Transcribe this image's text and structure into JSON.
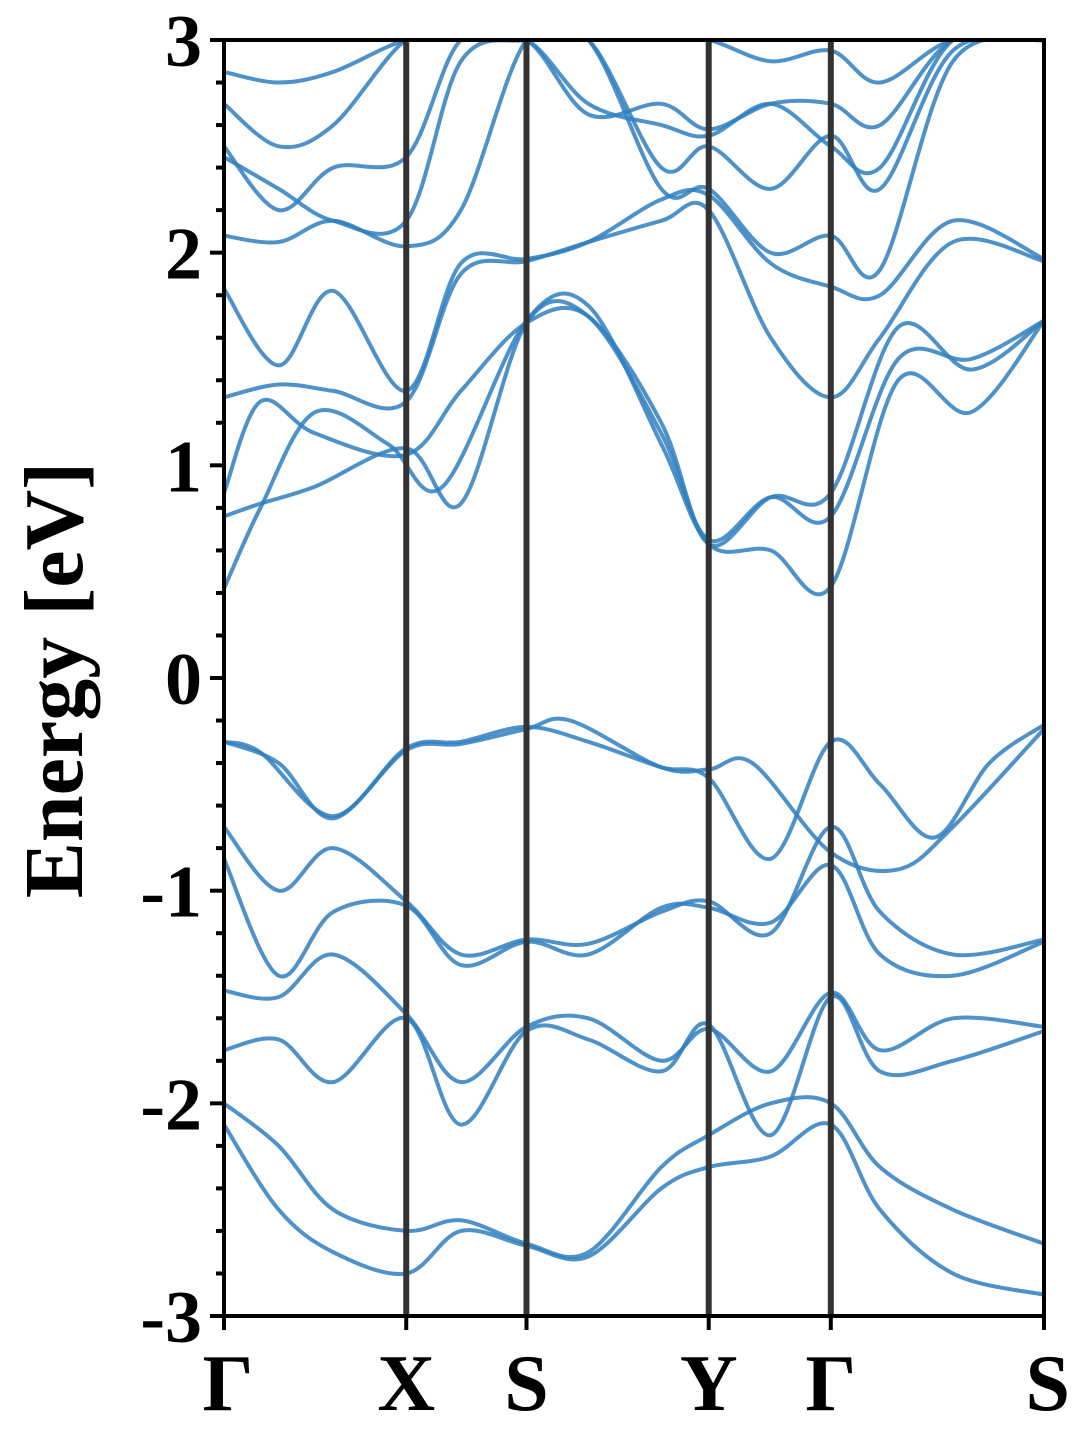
{
  "chart_data": {
    "type": "line",
    "ylabel": "Energy [eV]",
    "ylim": [
      -3,
      3
    ],
    "yticks": [
      3,
      2,
      1,
      0,
      -1,
      -2,
      -3
    ],
    "ytick_labels": [
      "3",
      "2",
      "1",
      "0",
      "-1",
      "-2",
      "-3"
    ],
    "minor_ytick_step": 0.2,
    "xlim": [
      0,
      4.5
    ],
    "kpath": [
      {
        "label": "Γ",
        "x": 0.0
      },
      {
        "label": "X",
        "x": 1.0
      },
      {
        "label": "S",
        "x": 1.66
      },
      {
        "label": "Y",
        "x": 2.66
      },
      {
        "label": "Γ",
        "x": 3.33
      },
      {
        "label": "S",
        "x": 4.5
      }
    ],
    "band_color": "#2f7fbf",
    "line_color": "#333333",
    "grid": false,
    "bands": [
      {
        "x": [
          0,
          0.2,
          0.6,
          1.0,
          1.3,
          1.66,
          2.0,
          2.4,
          2.66,
          3.0,
          3.33,
          3.6,
          3.9,
          4.2,
          4.5
        ],
        "y": [
          -0.3,
          -0.35,
          -0.65,
          -0.33,
          -0.3,
          -0.23,
          -0.3,
          -0.42,
          -0.47,
          -0.85,
          -0.3,
          -0.5,
          -0.75,
          -0.4,
          -0.22
        ]
      },
      {
        "x": [
          0,
          0.3,
          0.6,
          1.0,
          1.3,
          1.66,
          1.9,
          2.4,
          2.66,
          2.9,
          3.33,
          3.7,
          4.0,
          4.5
        ],
        "y": [
          -0.3,
          -0.4,
          -0.66,
          -0.34,
          -0.31,
          -0.24,
          -0.2,
          -0.42,
          -0.43,
          -0.4,
          -0.82,
          -0.9,
          -0.7,
          -0.24
        ]
      },
      {
        "x": [
          0,
          0.3,
          0.6,
          1.0,
          1.3,
          1.66,
          2.0,
          2.4,
          2.66,
          3.0,
          3.33,
          3.6,
          4.0,
          4.5
        ],
        "y": [
          -0.7,
          -1.0,
          -0.8,
          -1.05,
          -1.3,
          -1.23,
          -1.25,
          -1.1,
          -1.05,
          -1.2,
          -0.7,
          -1.1,
          -1.3,
          -1.23
        ]
      },
      {
        "x": [
          0,
          0.3,
          0.6,
          1.0,
          1.3,
          1.66,
          2.0,
          2.4,
          2.66,
          3.0,
          3.33,
          3.6,
          4.0,
          4.5
        ],
        "y": [
          -0.85,
          -1.4,
          -1.1,
          -1.07,
          -1.35,
          -1.24,
          -1.3,
          -1.08,
          -1.08,
          -1.15,
          -0.88,
          -1.3,
          -1.4,
          -1.24
        ]
      },
      {
        "x": [
          0,
          0.3,
          0.6,
          1.0,
          1.3,
          1.66,
          2.0,
          2.4,
          2.66,
          3.0,
          3.33,
          3.6,
          4.0,
          4.5
        ],
        "y": [
          -1.47,
          -1.5,
          -1.3,
          -1.58,
          -1.9,
          -1.64,
          -1.6,
          -1.8,
          -1.65,
          -1.85,
          -1.48,
          -1.75,
          -1.6,
          -1.64
        ]
      },
      {
        "x": [
          0,
          0.3,
          0.6,
          1.0,
          1.3,
          1.66,
          2.0,
          2.4,
          2.66,
          3.0,
          3.33,
          3.6,
          4.0,
          4.5
        ],
        "y": [
          -1.75,
          -1.7,
          -1.9,
          -1.6,
          -2.1,
          -1.66,
          -1.7,
          -1.85,
          -1.63,
          -2.15,
          -1.5,
          -1.85,
          -1.8,
          -1.66
        ]
      },
      {
        "x": [
          0,
          0.3,
          0.6,
          1.0,
          1.3,
          1.66,
          2.0,
          2.4,
          2.66,
          3.0,
          3.33,
          3.6,
          4.0,
          4.5
        ],
        "y": [
          -2.0,
          -2.2,
          -2.5,
          -2.6,
          -2.55,
          -2.66,
          -2.7,
          -2.3,
          -2.15,
          -2.0,
          -2.0,
          -2.3,
          -2.5,
          -2.66
        ]
      },
      {
        "x": [
          0,
          0.3,
          0.6,
          1.0,
          1.3,
          1.66,
          2.0,
          2.4,
          2.66,
          3.0,
          3.33,
          3.6,
          4.0,
          4.5
        ],
        "y": [
          -2.1,
          -2.5,
          -2.7,
          -2.8,
          -2.6,
          -2.67,
          -2.72,
          -2.4,
          -2.3,
          -2.25,
          -2.1,
          -2.5,
          -2.8,
          -2.9
        ]
      },
      {
        "x": [
          0,
          0.2,
          0.5,
          0.9,
          1.2,
          1.66,
          2.0,
          2.4,
          2.66,
          3.0,
          3.33,
          3.7,
          4.1,
          4.5
        ],
        "y": [
          0.42,
          0.8,
          1.25,
          1.1,
          0.9,
          1.68,
          1.75,
          1.1,
          0.63,
          0.6,
          0.43,
          1.4,
          1.25,
          1.68
        ]
      },
      {
        "x": [
          0,
          0.2,
          0.5,
          1.0,
          1.3,
          1.66,
          2.0,
          2.4,
          2.66,
          3.0,
          3.33,
          3.7,
          4.1,
          4.5
        ],
        "y": [
          0.76,
          0.82,
          0.9,
          1.08,
          0.82,
          1.67,
          1.7,
          1.15,
          0.65,
          0.85,
          0.76,
          1.5,
          1.5,
          1.68
        ]
      },
      {
        "x": [
          0,
          0.2,
          0.5,
          1.0,
          1.3,
          1.66,
          2.0,
          2.4,
          2.66,
          3.0,
          3.33,
          3.7,
          4.1,
          4.5
        ],
        "y": [
          0.87,
          1.3,
          1.15,
          1.05,
          1.35,
          1.67,
          1.7,
          1.2,
          0.63,
          0.85,
          0.87,
          1.65,
          1.45,
          1.68
        ]
      },
      {
        "x": [
          0,
          0.3,
          0.6,
          1.0,
          1.3,
          1.66,
          2.0,
          2.4,
          2.66,
          3.0,
          3.33,
          3.6,
          4.0,
          4.5
        ],
        "y": [
          1.32,
          1.38,
          1.35,
          1.3,
          1.9,
          1.96,
          2.05,
          2.15,
          2.2,
          1.6,
          1.32,
          1.6,
          2.05,
          1.96
        ]
      },
      {
        "x": [
          0,
          0.3,
          0.6,
          1.0,
          1.3,
          1.66,
          2.0,
          2.4,
          2.66,
          3.0,
          3.33,
          3.6,
          4.0,
          4.5
        ],
        "y": [
          1.83,
          1.47,
          1.82,
          1.35,
          1.95,
          1.97,
          2.05,
          2.25,
          2.27,
          1.95,
          1.84,
          1.8,
          2.15,
          1.97
        ]
      },
      {
        "x": [
          0,
          0.3,
          0.6,
          1.0,
          1.3,
          1.66,
          2.0,
          2.4,
          2.66,
          3.0,
          3.33,
          3.6,
          4.0,
          4.5
        ],
        "y": [
          2.08,
          2.05,
          2.15,
          2.03,
          2.2,
          3.0,
          3.0,
          2.3,
          2.3,
          2.0,
          2.08,
          1.92,
          2.9,
          3.0
        ]
      },
      {
        "x": [
          0,
          0.3,
          0.6,
          1.0,
          1.3,
          1.66,
          2.0,
          2.4,
          2.66,
          3.0,
          3.33,
          3.6,
          4.0,
          4.5
        ],
        "y": [
          2.45,
          2.3,
          2.15,
          2.15,
          2.9,
          3.0,
          3.0,
          2.4,
          2.5,
          2.3,
          2.55,
          2.3,
          2.95,
          3.0
        ]
      },
      {
        "x": [
          0,
          0.3,
          0.6,
          1.0,
          1.3,
          1.66,
          2.0,
          2.4,
          2.66,
          3.0,
          3.33,
          3.6,
          4.0,
          4.5
        ],
        "y": [
          2.5,
          2.2,
          2.4,
          2.45,
          3.0,
          3.0,
          2.7,
          2.6,
          2.55,
          2.7,
          2.5,
          2.4,
          3.0,
          3.0
        ]
      },
      {
        "x": [
          0,
          0.3,
          0.6,
          1.0,
          1.3,
          1.66,
          2.0,
          2.4,
          2.66,
          3.0,
          3.33,
          3.6,
          4.0,
          4.5
        ],
        "y": [
          2.7,
          2.5,
          2.6,
          3.0,
          3.0,
          3.0,
          2.65,
          2.7,
          2.58,
          2.7,
          2.7,
          2.6,
          3.0,
          3.0
        ]
      },
      {
        "x": [
          0,
          0.3,
          0.6,
          1.0,
          1.3,
          1.66,
          2.0,
          2.4,
          2.66,
          3.0,
          3.33,
          3.6,
          4.0,
          4.5
        ],
        "y": [
          2.85,
          2.8,
          2.85,
          3.0,
          3.0,
          3.0,
          3.0,
          3.0,
          3.0,
          2.9,
          2.95,
          2.8,
          3.0,
          3.0
        ]
      }
    ]
  }
}
